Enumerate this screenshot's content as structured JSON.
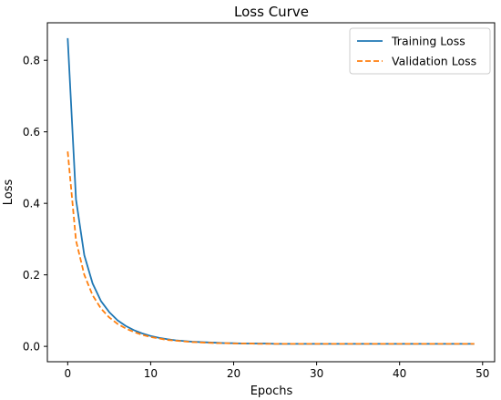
{
  "chart_data": {
    "type": "line",
    "title": "Loss Curve",
    "xlabel": "Epochs",
    "ylabel": "Loss",
    "xlim": [
      -2.45,
      51.45
    ],
    "ylim": [
      -0.043,
      0.905
    ],
    "xticks": [
      0,
      10,
      20,
      30,
      40,
      50
    ],
    "yticks": [
      0.0,
      0.2,
      0.4,
      0.6,
      0.8
    ],
    "xtick_labels": [
      "0",
      "10",
      "20",
      "30",
      "40",
      "50"
    ],
    "ytick_labels": [
      "0.0",
      "0.2",
      "0.4",
      "0.6",
      "0.8"
    ],
    "grid": false,
    "legend_position": "top-right",
    "x": [
      0,
      1,
      2,
      3,
      4,
      5,
      6,
      7,
      8,
      9,
      10,
      11,
      12,
      13,
      14,
      15,
      16,
      17,
      18,
      19,
      20,
      21,
      22,
      23,
      24,
      25,
      26,
      27,
      28,
      29,
      30,
      31,
      32,
      33,
      34,
      35,
      36,
      37,
      38,
      39,
      40,
      41,
      42,
      43,
      44,
      45,
      46,
      47,
      48,
      49
    ],
    "series": [
      {
        "name": "Training Loss",
        "color": "#1f77b4",
        "line_style": "solid",
        "values": [
          0.862,
          0.411,
          0.255,
          0.176,
          0.127,
          0.096,
          0.073,
          0.057,
          0.045,
          0.036,
          0.029,
          0.024,
          0.02,
          0.017,
          0.015,
          0.013,
          0.012,
          0.011,
          0.01,
          0.009,
          0.009,
          0.008,
          0.008,
          0.008,
          0.008,
          0.007,
          0.007,
          0.007,
          0.007,
          0.007,
          0.007,
          0.007,
          0.007,
          0.007,
          0.007,
          0.007,
          0.007,
          0.007,
          0.007,
          0.007,
          0.007,
          0.007,
          0.007,
          0.007,
          0.007,
          0.007,
          0.007,
          0.007,
          0.007,
          0.007
        ]
      },
      {
        "name": "Validation Loss",
        "color": "#ff7f0e",
        "line_style": "dashed",
        "values": [
          0.545,
          0.296,
          0.2,
          0.143,
          0.106,
          0.081,
          0.063,
          0.05,
          0.04,
          0.032,
          0.026,
          0.022,
          0.018,
          0.016,
          0.014,
          0.012,
          0.011,
          0.01,
          0.009,
          0.009,
          0.008,
          0.008,
          0.008,
          0.007,
          0.007,
          0.007,
          0.007,
          0.007,
          0.007,
          0.007,
          0.007,
          0.007,
          0.007,
          0.007,
          0.007,
          0.007,
          0.007,
          0.007,
          0.007,
          0.007,
          0.007,
          0.007,
          0.007,
          0.007,
          0.007,
          0.007,
          0.007,
          0.007,
          0.007,
          0.007
        ]
      }
    ]
  }
}
